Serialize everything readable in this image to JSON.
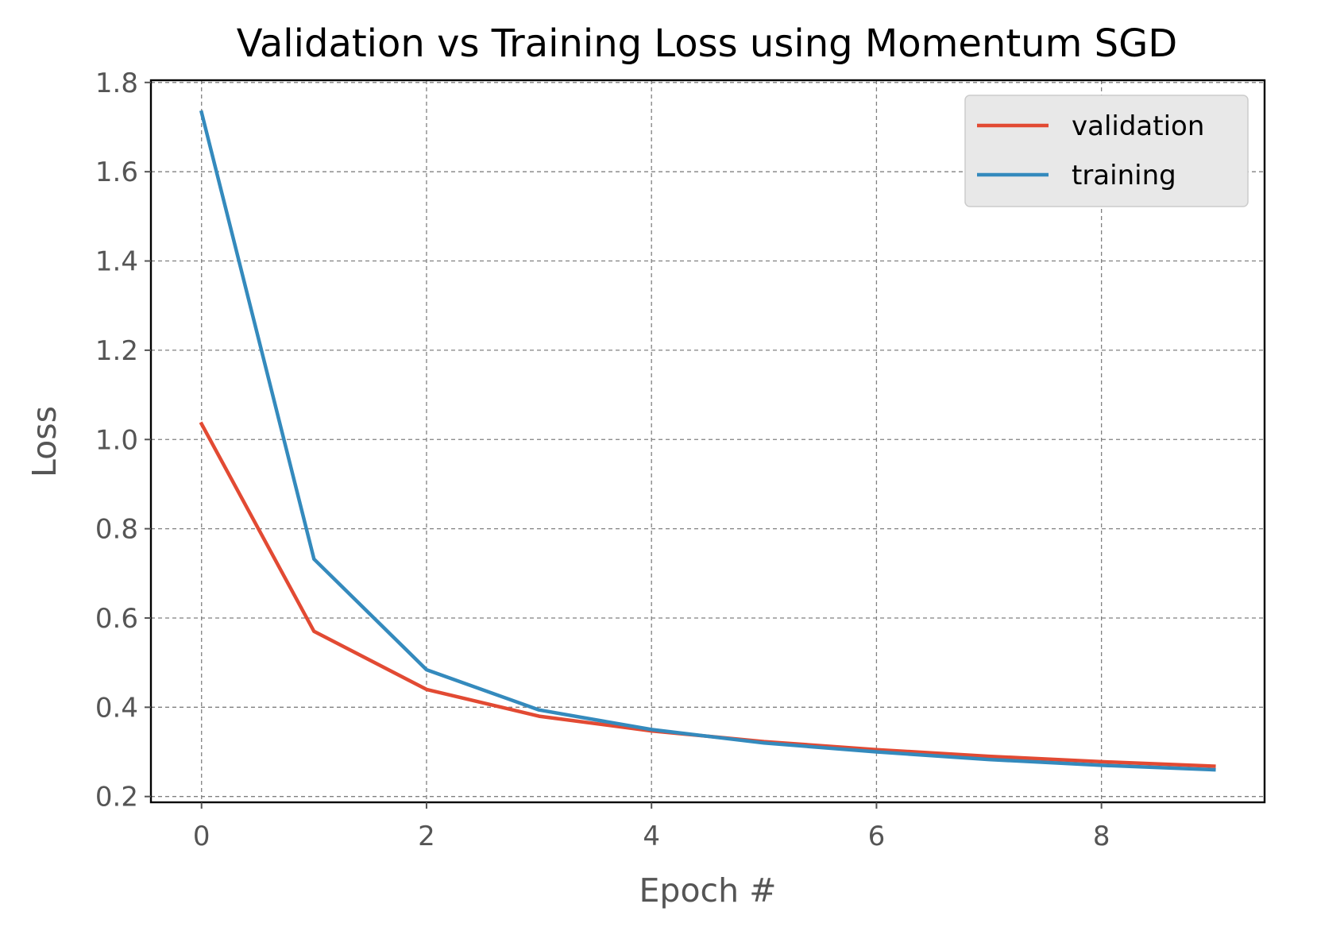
{
  "chart_data": {
    "type": "line",
    "title": "Validation vs Training Loss using Momentum SGD",
    "xlabel": "Epoch #",
    "ylabel": "Loss",
    "xlim": [
      -0.45,
      9.45
    ],
    "ylim": [
      0.187,
      1.805
    ],
    "xticks": [
      0,
      2,
      4,
      6,
      8
    ],
    "xtick_labels": [
      "0",
      "2",
      "4",
      "6",
      "8"
    ],
    "yticks": [
      0.2,
      0.4,
      0.6,
      0.8,
      1.0,
      1.2,
      1.4,
      1.6,
      1.8
    ],
    "ytick_labels": [
      "0.2",
      "0.4",
      "0.6",
      "0.8",
      "1.0",
      "1.2",
      "1.4",
      "1.6",
      "1.8"
    ],
    "grid": true,
    "legend_position": "top-right",
    "x": [
      0,
      1,
      2,
      3,
      4,
      5,
      6,
      7,
      8,
      9
    ],
    "series": [
      {
        "name": "validation",
        "color": "#E24A33",
        "values": [
          1.035,
          0.57,
          0.44,
          0.38,
          0.347,
          0.323,
          0.305,
          0.29,
          0.278,
          0.268
        ]
      },
      {
        "name": "training",
        "color": "#348ABD",
        "values": [
          1.733,
          0.732,
          0.484,
          0.394,
          0.35,
          0.32,
          0.3,
          0.283,
          0.27,
          0.26
        ]
      }
    ]
  }
}
